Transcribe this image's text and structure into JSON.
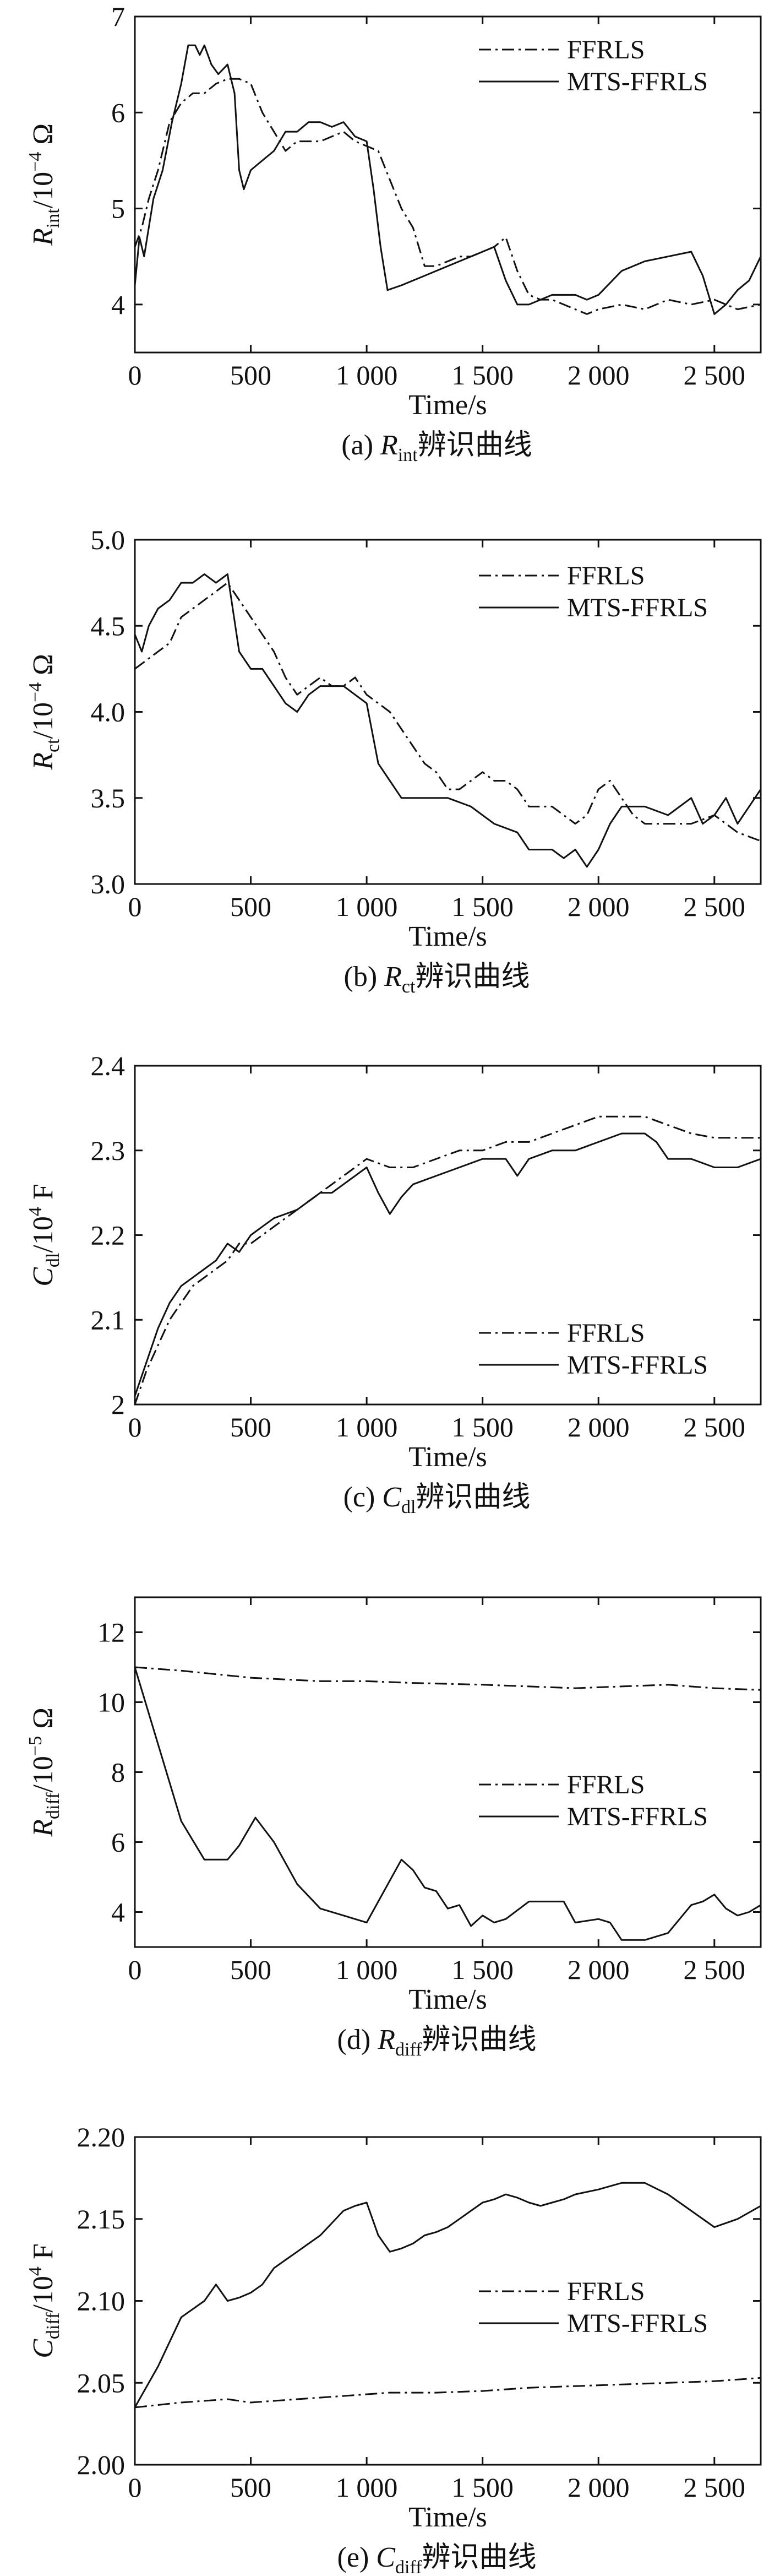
{
  "chart_data": [
    {
      "type": "line",
      "caption": {
        "prefix": "(a) ",
        "symbol": "R",
        "sub": "int",
        "suffix": "辨识曲线"
      },
      "xlabel": "Time/s",
      "ylabel": {
        "symbol": "R",
        "sub": "int",
        "unit_pre": "/10",
        "unit_exp": "−4",
        "unit_post": " Ω"
      },
      "xlim": [
        0,
        2700
      ],
      "ylim": [
        3.5,
        7
      ],
      "xticks": [
        0,
        500,
        1000,
        1500,
        2000,
        2500
      ],
      "xtick_labels": [
        "0",
        "500",
        "1 000",
        "1 500",
        "2 000",
        "2 500"
      ],
      "yticks": [
        4,
        5,
        6,
        7
      ],
      "ytick_labels": [
        "4",
        "5",
        "6",
        "7"
      ],
      "legend_position": "top-right",
      "series": [
        {
          "name": "FFRLS",
          "style": "dashdot",
          "x": [
            0,
            30,
            60,
            100,
            150,
            200,
            250,
            300,
            350,
            400,
            450,
            500,
            550,
            600,
            650,
            700,
            750,
            800,
            850,
            900,
            950,
            1000,
            1050,
            1100,
            1150,
            1200,
            1250,
            1300,
            1400,
            1450,
            1500,
            1550,
            1600,
            1650,
            1700,
            1750,
            1800,
            1850,
            1900,
            1950,
            2000,
            2100,
            2200,
            2300,
            2400,
            2500,
            2600,
            2700
          ],
          "y": [
            4.6,
            4.8,
            5.1,
            5.4,
            5.9,
            6.1,
            6.2,
            6.2,
            6.3,
            6.35,
            6.35,
            6.3,
            6.0,
            5.8,
            5.6,
            5.7,
            5.7,
            5.7,
            5.75,
            5.8,
            5.7,
            5.65,
            5.6,
            5.3,
            5.0,
            4.8,
            4.4,
            4.4,
            4.5,
            4.5,
            4.55,
            4.6,
            4.7,
            4.35,
            4.1,
            4.05,
            4.05,
            4.0,
            3.95,
            3.9,
            3.95,
            4.0,
            3.95,
            4.05,
            4.0,
            4.05,
            3.95,
            4.0
          ]
        },
        {
          "name": "MTS-FFRLS",
          "style": "solid",
          "x": [
            0,
            20,
            40,
            80,
            120,
            160,
            200,
            230,
            260,
            280,
            300,
            330,
            360,
            400,
            430,
            450,
            470,
            500,
            550,
            600,
            650,
            700,
            750,
            800,
            850,
            900,
            950,
            1000,
            1030,
            1060,
            1090,
            1150,
            1250,
            1350,
            1450,
            1550,
            1600,
            1650,
            1700,
            1800,
            1900,
            1950,
            2000,
            2100,
            2200,
            2300,
            2400,
            2450,
            2500,
            2550,
            2600,
            2650,
            2700
          ],
          "y": [
            4.2,
            4.7,
            4.5,
            5.1,
            5.4,
            5.9,
            6.3,
            6.7,
            6.7,
            6.6,
            6.7,
            6.5,
            6.4,
            6.5,
            6.2,
            5.4,
            5.2,
            5.4,
            5.5,
            5.6,
            5.8,
            5.8,
            5.9,
            5.9,
            5.85,
            5.9,
            5.75,
            5.7,
            5.2,
            4.6,
            4.15,
            4.2,
            4.3,
            4.4,
            4.5,
            4.6,
            4.25,
            4.0,
            4.0,
            4.1,
            4.1,
            4.05,
            4.1,
            4.35,
            4.45,
            4.5,
            4.55,
            4.3,
            3.9,
            4.0,
            4.15,
            4.25,
            4.5
          ]
        }
      ]
    },
    {
      "type": "line",
      "caption": {
        "prefix": "(b) ",
        "symbol": "R",
        "sub": "ct",
        "suffix": "辨识曲线"
      },
      "xlabel": "Time/s",
      "ylabel": {
        "symbol": "R",
        "sub": "ct",
        "unit_pre": "/10",
        "unit_exp": "−4",
        "unit_post": " Ω"
      },
      "xlim": [
        0,
        2700
      ],
      "ylim": [
        3.0,
        5.0
      ],
      "xticks": [
        0,
        500,
        1000,
        1500,
        2000,
        2500
      ],
      "xtick_labels": [
        "0",
        "500",
        "1 000",
        "1 500",
        "2 000",
        "2 500"
      ],
      "yticks": [
        3.0,
        3.5,
        4.0,
        4.5,
        5.0
      ],
      "ytick_labels": [
        "3.0",
        "3.5",
        "4.0",
        "4.5",
        "5.0"
      ],
      "legend_position": "top-right",
      "series": [
        {
          "name": "FFRLS",
          "style": "dashdot",
          "x": [
            0,
            50,
            100,
            150,
            200,
            250,
            300,
            350,
            400,
            450,
            500,
            550,
            600,
            650,
            700,
            750,
            800,
            850,
            900,
            950,
            1000,
            1050,
            1100,
            1150,
            1200,
            1250,
            1300,
            1350,
            1400,
            1450,
            1500,
            1550,
            1600,
            1650,
            1700,
            1750,
            1800,
            1850,
            1900,
            1950,
            2000,
            2050,
            2100,
            2150,
            2200,
            2300,
            2400,
            2500,
            2600,
            2700
          ],
          "y": [
            4.25,
            4.3,
            4.35,
            4.4,
            4.55,
            4.6,
            4.65,
            4.7,
            4.75,
            4.65,
            4.55,
            4.45,
            4.35,
            4.2,
            4.1,
            4.15,
            4.2,
            4.15,
            4.15,
            4.2,
            4.1,
            4.05,
            4.0,
            3.9,
            3.8,
            3.7,
            3.65,
            3.55,
            3.55,
            3.6,
            3.65,
            3.6,
            3.6,
            3.55,
            3.45,
            3.45,
            3.45,
            3.4,
            3.35,
            3.4,
            3.55,
            3.6,
            3.5,
            3.4,
            3.35,
            3.35,
            3.35,
            3.4,
            3.3,
            3.25
          ]
        },
        {
          "name": "MTS-FFRLS",
          "style": "solid",
          "x": [
            0,
            30,
            60,
            100,
            150,
            200,
            250,
            300,
            350,
            400,
            450,
            500,
            550,
            600,
            650,
            700,
            750,
            800,
            850,
            900,
            950,
            1000,
            1050,
            1100,
            1150,
            1250,
            1350,
            1450,
            1550,
            1650,
            1700,
            1750,
            1800,
            1850,
            1900,
            1950,
            2000,
            2050,
            2100,
            2200,
            2300,
            2400,
            2450,
            2500,
            2550,
            2600,
            2650,
            2700
          ],
          "y": [
            4.45,
            4.35,
            4.5,
            4.6,
            4.65,
            4.75,
            4.75,
            4.8,
            4.75,
            4.8,
            4.35,
            4.25,
            4.25,
            4.15,
            4.05,
            4.0,
            4.1,
            4.15,
            4.15,
            4.15,
            4.1,
            4.05,
            3.7,
            3.6,
            3.5,
            3.5,
            3.5,
            3.45,
            3.35,
            3.3,
            3.2,
            3.2,
            3.2,
            3.15,
            3.2,
            3.1,
            3.2,
            3.35,
            3.45,
            3.45,
            3.4,
            3.5,
            3.35,
            3.4,
            3.5,
            3.35,
            3.45,
            3.55
          ]
        }
      ]
    },
    {
      "type": "line",
      "caption": {
        "prefix": "(c) ",
        "symbol": "C",
        "sub": "dl",
        "suffix": "辨识曲线"
      },
      "xlabel": "Time/s",
      "ylabel": {
        "symbol": "C",
        "sub": "dl",
        "unit_pre": "/10",
        "unit_exp": "4",
        "unit_post": " F"
      },
      "xlim": [
        0,
        2700
      ],
      "ylim": [
        2.0,
        2.4
      ],
      "xticks": [
        0,
        500,
        1000,
        1500,
        2000,
        2500
      ],
      "xtick_labels": [
        "0",
        "500",
        "1 000",
        "1 500",
        "2 000",
        "2 500"
      ],
      "yticks": [
        2.0,
        2.1,
        2.2,
        2.3,
        2.4
      ],
      "ytick_labels": [
        "2",
        "2.1",
        "2.2",
        "2.3",
        "2.4"
      ],
      "legend_position": "bottom-right",
      "series": [
        {
          "name": "FFRLS",
          "style": "dashdot",
          "x": [
            0,
            50,
            100,
            150,
            200,
            250,
            300,
            350,
            400,
            450,
            500,
            550,
            600,
            650,
            700,
            750,
            800,
            850,
            900,
            950,
            1000,
            1100,
            1200,
            1300,
            1400,
            1500,
            1600,
            1700,
            1800,
            1900,
            2000,
            2100,
            2200,
            2300,
            2400,
            2500,
            2600,
            2700
          ],
          "y": [
            2.0,
            2.04,
            2.07,
            2.1,
            2.12,
            2.14,
            2.15,
            2.16,
            2.17,
            2.19,
            2.19,
            2.2,
            2.21,
            2.22,
            2.23,
            2.24,
            2.25,
            2.26,
            2.27,
            2.28,
            2.29,
            2.28,
            2.28,
            2.29,
            2.3,
            2.3,
            2.31,
            2.31,
            2.32,
            2.33,
            2.34,
            2.34,
            2.34,
            2.33,
            2.32,
            2.315,
            2.315,
            2.315
          ]
        },
        {
          "name": "MTS-FFRLS",
          "style": "solid",
          "x": [
            0,
            50,
            100,
            150,
            200,
            250,
            300,
            350,
            400,
            450,
            500,
            550,
            600,
            650,
            700,
            750,
            800,
            850,
            900,
            950,
            1000,
            1050,
            1100,
            1150,
            1200,
            1300,
            1400,
            1500,
            1600,
            1650,
            1700,
            1800,
            1900,
            2000,
            2100,
            2200,
            2250,
            2300,
            2400,
            2500,
            2600,
            2700
          ],
          "y": [
            2.01,
            2.05,
            2.09,
            2.12,
            2.14,
            2.15,
            2.16,
            2.17,
            2.19,
            2.18,
            2.2,
            2.21,
            2.22,
            2.225,
            2.23,
            2.24,
            2.25,
            2.25,
            2.26,
            2.27,
            2.28,
            2.25,
            2.225,
            2.245,
            2.26,
            2.27,
            2.28,
            2.29,
            2.29,
            2.27,
            2.29,
            2.3,
            2.3,
            2.31,
            2.32,
            2.32,
            2.31,
            2.29,
            2.29,
            2.28,
            2.28,
            2.29
          ]
        }
      ]
    },
    {
      "type": "line",
      "caption": {
        "prefix": "(d) ",
        "symbol": "R",
        "sub": "diff",
        "suffix": "辨识曲线"
      },
      "xlabel": "Time/s",
      "ylabel": {
        "symbol": "R",
        "sub": "diff",
        "unit_pre": "/10",
        "unit_exp": "−5",
        "unit_post": " Ω"
      },
      "xlim": [
        0,
        2700
      ],
      "ylim": [
        3,
        13
      ],
      "xticks": [
        0,
        500,
        1000,
        1500,
        2000,
        2500
      ],
      "xtick_labels": [
        "0",
        "500",
        "1 000",
        "1 500",
        "2 000",
        "2 500"
      ],
      "yticks": [
        4,
        6,
        8,
        10,
        12
      ],
      "ytick_labels": [
        "4",
        "6",
        "8",
        "10",
        "12"
      ],
      "legend_position": "middle-right",
      "series": [
        {
          "name": "FFRLS",
          "style": "dashdot",
          "x": [
            0,
            200,
            500,
            800,
            1000,
            1200,
            1500,
            1700,
            1900,
            2100,
            2300,
            2500,
            2700
          ],
          "y": [
            11.0,
            10.9,
            10.7,
            10.6,
            10.6,
            10.55,
            10.5,
            10.45,
            10.4,
            10.45,
            10.5,
            10.4,
            10.35
          ]
        },
        {
          "name": "MTS-FFRLS",
          "style": "solid",
          "x": [
            0,
            100,
            200,
            300,
            400,
            450,
            520,
            600,
            700,
            800,
            900,
            1000,
            1150,
            1200,
            1250,
            1300,
            1350,
            1400,
            1450,
            1500,
            1550,
            1600,
            1700,
            1800,
            1850,
            1900,
            2000,
            2050,
            2100,
            2200,
            2300,
            2400,
            2450,
            2500,
            2550,
            2600,
            2650,
            2700
          ],
          "y": [
            11.0,
            8.8,
            6.6,
            5.5,
            5.5,
            5.9,
            6.7,
            6.0,
            4.8,
            4.1,
            3.9,
            3.7,
            5.5,
            5.2,
            4.7,
            4.6,
            4.1,
            4.2,
            3.6,
            3.9,
            3.7,
            3.8,
            4.3,
            4.3,
            4.3,
            3.7,
            3.8,
            3.7,
            3.2,
            3.2,
            3.4,
            4.2,
            4.3,
            4.5,
            4.1,
            3.9,
            4.0,
            4.2
          ]
        }
      ]
    },
    {
      "type": "line",
      "caption": {
        "prefix": "(e) ",
        "symbol": "C",
        "sub": "diff",
        "suffix": "辨识曲线"
      },
      "xlabel": "Time/s",
      "ylabel": {
        "symbol": "C",
        "sub": "diff",
        "unit_pre": "/10",
        "unit_exp": "4",
        "unit_post": " F"
      },
      "xlim": [
        0,
        2700
      ],
      "ylim": [
        2.0,
        2.2
      ],
      "xticks": [
        0,
        500,
        1000,
        1500,
        2000,
        2500
      ],
      "xtick_labels": [
        "0",
        "500",
        "1 000",
        "1 500",
        "2 000",
        "2 500"
      ],
      "yticks": [
        2.0,
        2.05,
        2.1,
        2.15,
        2.2
      ],
      "ytick_labels": [
        "2.00",
        "2.05",
        "2.10",
        "2.15",
        "2.20"
      ],
      "legend_position": "middle-right",
      "series": [
        {
          "name": "FFRLS",
          "style": "dashdot",
          "x": [
            0,
            200,
            400,
            500,
            700,
            900,
            1100,
            1300,
            1500,
            1700,
            1900,
            2100,
            2300,
            2500,
            2700
          ],
          "y": [
            2.035,
            2.038,
            2.04,
            2.038,
            2.04,
            2.042,
            2.044,
            2.044,
            2.045,
            2.047,
            2.048,
            2.049,
            2.05,
            2.051,
            2.053
          ]
        },
        {
          "name": "MTS-FFRLS",
          "style": "solid",
          "x": [
            0,
            100,
            200,
            300,
            350,
            400,
            450,
            500,
            550,
            600,
            650,
            700,
            750,
            800,
            900,
            950,
            1000,
            1050,
            1100,
            1150,
            1200,
            1250,
            1300,
            1350,
            1400,
            1450,
            1500,
            1550,
            1600,
            1650,
            1700,
            1750,
            1800,
            1850,
            1900,
            2000,
            2100,
            2200,
            2300,
            2400,
            2500,
            2600,
            2700
          ],
          "y": [
            2.035,
            2.06,
            2.09,
            2.1,
            2.11,
            2.1,
            2.102,
            2.105,
            2.11,
            2.12,
            2.125,
            2.13,
            2.135,
            2.14,
            2.155,
            2.158,
            2.16,
            2.14,
            2.13,
            2.132,
            2.135,
            2.14,
            2.142,
            2.145,
            2.15,
            2.155,
            2.16,
            2.162,
            2.165,
            2.163,
            2.16,
            2.158,
            2.16,
            2.162,
            2.165,
            2.168,
            2.172,
            2.172,
            2.165,
            2.155,
            2.145,
            2.15,
            2.158
          ]
        }
      ]
    }
  ]
}
